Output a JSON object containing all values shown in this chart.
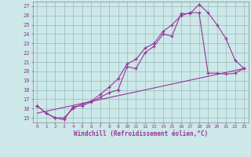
{
  "xlabel": "Windchill (Refroidissement éolien,°C)",
  "bg_color": "#cce8e8",
  "line_color": "#993399",
  "xlim": [
    -0.5,
    23.5
  ],
  "ylim": [
    14.5,
    27.5
  ],
  "xticks": [
    0,
    1,
    2,
    3,
    4,
    5,
    6,
    7,
    8,
    9,
    10,
    11,
    12,
    13,
    14,
    15,
    16,
    17,
    18,
    19,
    20,
    21,
    22,
    23
  ],
  "yticks": [
    15,
    16,
    17,
    18,
    19,
    20,
    21,
    22,
    23,
    24,
    25,
    26,
    27
  ],
  "line1_x": [
    0,
    1,
    2,
    3,
    4,
    5,
    6,
    7,
    8,
    9,
    10,
    11,
    12,
    13,
    14,
    15,
    16,
    17,
    18,
    19,
    20,
    21,
    22,
    23
  ],
  "line1_y": [
    16.3,
    15.5,
    15.0,
    14.8,
    16.2,
    16.3,
    16.7,
    17.2,
    17.7,
    18.0,
    20.5,
    20.3,
    22.0,
    22.7,
    24.0,
    23.8,
    26.2,
    26.2,
    27.2,
    26.3,
    25.0,
    23.5,
    21.2,
    20.3
  ],
  "line2_x": [
    0,
    1,
    2,
    3,
    4,
    5,
    6,
    7,
    8,
    9,
    10,
    11,
    12,
    13,
    14,
    15,
    16,
    17,
    18,
    19,
    20,
    21,
    22,
    23
  ],
  "line2_y": [
    16.3,
    15.5,
    15.0,
    15.0,
    16.0,
    16.5,
    16.8,
    17.5,
    18.3,
    19.2,
    20.8,
    21.3,
    22.5,
    23.0,
    24.3,
    25.0,
    26.0,
    26.3,
    26.3,
    19.8,
    19.8,
    19.7,
    19.8,
    20.3
  ],
  "line3_x": [
    0,
    23
  ],
  "line3_y": [
    15.5,
    20.3
  ]
}
